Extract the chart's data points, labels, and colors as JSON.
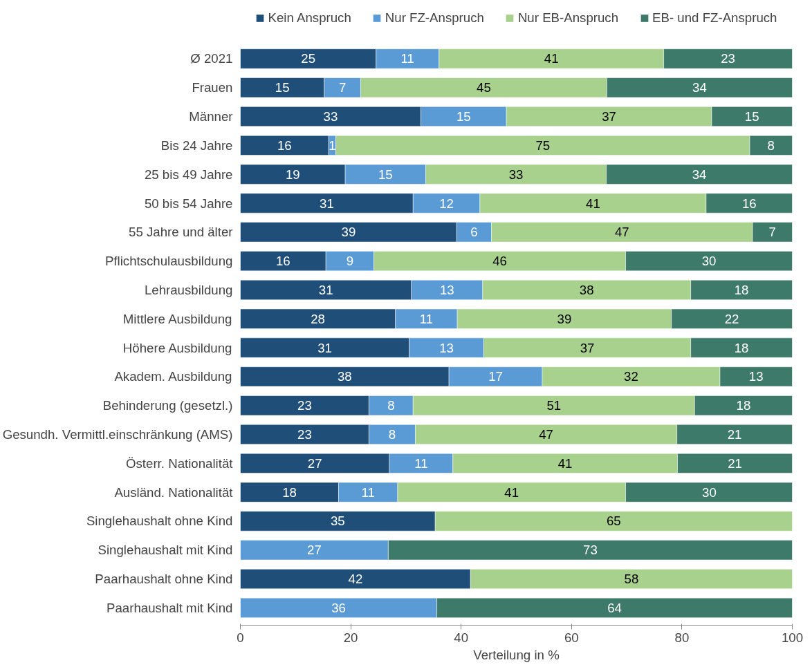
{
  "chart_data": {
    "type": "bar",
    "orientation": "horizontal",
    "stacked": true,
    "xlabel": "Verteilung in %",
    "xlim": [
      0,
      100
    ],
    "xticks": [
      0,
      20,
      40,
      60,
      80,
      100
    ],
    "grid": false,
    "legend": "top",
    "categories": [
      "Ø 2021",
      "Frauen",
      "Männer",
      "Bis 24 Jahre",
      "25 bis 49 Jahre",
      "50 bis 54 Jahre",
      "55 Jahre und älter",
      "Pflichtschulausbildung",
      "Lehrausbildung",
      "Mittlere Ausbildung",
      "Höhere Ausbildung",
      "Akadem. Ausbildung",
      "Behinderung (gesetzl.)",
      "Gesundh. Vermittl.einschränkung (AMS)",
      "Österr. Nationalität",
      "Ausländ. Nationalität",
      "Singlehaushalt ohne Kind",
      "Singlehaushalt mit Kind",
      "Paarhaushalt ohne Kind",
      "Paarhaushalt mit Kind"
    ],
    "series": [
      {
        "name": "Kein Anspruch",
        "color": "#1f4e79",
        "values": [
          24.6,
          15.2,
          32.7,
          16.0,
          19.0,
          31.3,
          39.2,
          15.5,
          31.0,
          28.1,
          30.6,
          37.8,
          23.3,
          23.3,
          27.0,
          17.8,
          35.3,
          null,
          41.7,
          null
        ],
        "value_labels": [
          "25",
          "15",
          "33",
          "16",
          "19",
          "31",
          "39",
          "16",
          "31",
          "28",
          "31",
          "38",
          "23",
          "23",
          "27",
          "18",
          "35",
          null,
          "42",
          null
        ]
      },
      {
        "name": "Nur FZ-Anspruch",
        "color": "#5b9bd5",
        "values": [
          11.4,
          6.6,
          15.5,
          1.3,
          14.6,
          12.1,
          6.3,
          8.7,
          12.9,
          11.2,
          13.5,
          16.9,
          8.0,
          8.4,
          11.5,
          10.7,
          null,
          26.8,
          null,
          35.6
        ],
        "value_labels": [
          "11",
          "7",
          "15",
          "1",
          "15",
          "12",
          "6",
          "9",
          "13",
          "11",
          "13",
          "17",
          "8",
          "8",
          "11",
          "11",
          null,
          "27",
          null,
          "36"
        ]
      },
      {
        "name": "Nur EB-Anspruch",
        "color": "#a9d18e",
        "values": [
          40.7,
          44.6,
          37.2,
          75.0,
          32.7,
          41.0,
          47.3,
          45.6,
          37.7,
          38.8,
          37.5,
          32.2,
          51.0,
          47.4,
          40.7,
          41.3,
          64.7,
          null,
          58.3,
          null
        ],
        "value_labels": [
          "41",
          "45",
          "37",
          "75",
          "33",
          "41",
          "47",
          "46",
          "38",
          "39",
          "37",
          "32",
          "51",
          "47",
          "41",
          "41",
          "65",
          null,
          "58",
          null
        ]
      },
      {
        "name": "EB- und FZ-Anspruch",
        "color": "#3e7a6a",
        "values": [
          23.3,
          33.6,
          14.6,
          7.7,
          33.7,
          15.6,
          7.2,
          30.2,
          18.4,
          21.9,
          18.4,
          13.1,
          17.7,
          20.9,
          20.8,
          30.3,
          null,
          73.2,
          null,
          64.4
        ],
        "value_labels": [
          "23",
          "34",
          "15",
          "8",
          "34",
          "16",
          "7",
          "30",
          "18",
          "22",
          "18",
          "13",
          "18",
          "21",
          "21",
          "30",
          null,
          "73",
          null,
          "64"
        ]
      }
    ]
  }
}
